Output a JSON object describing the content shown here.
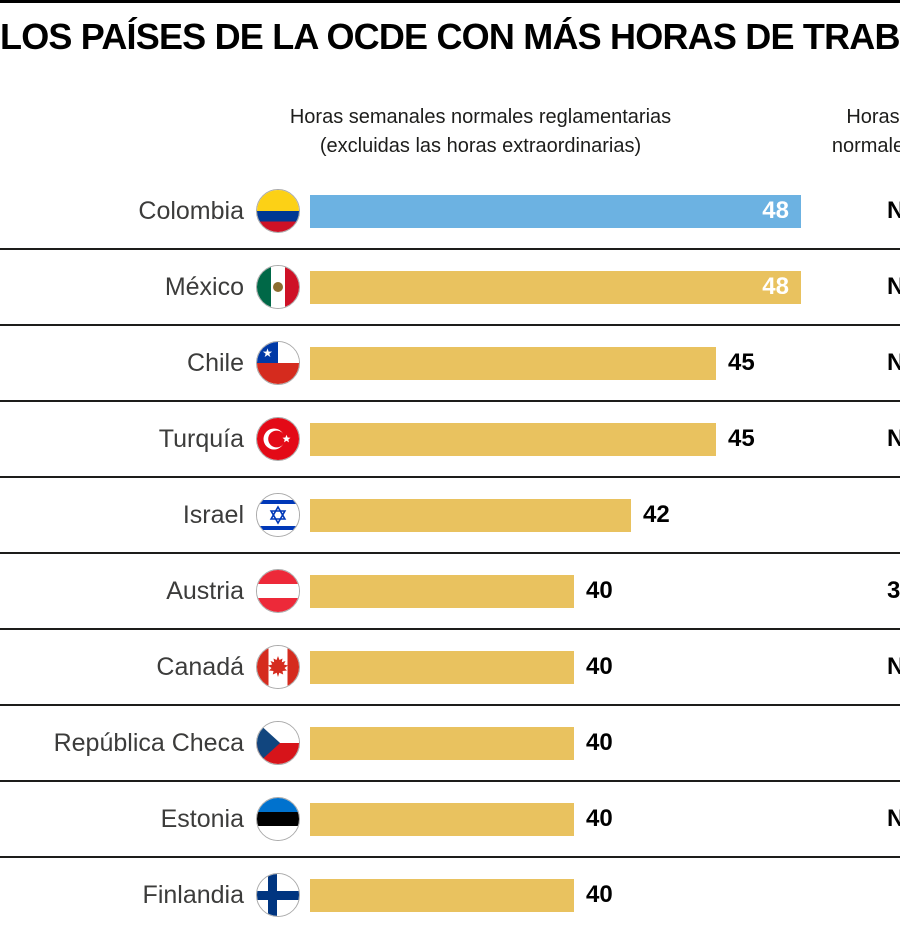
{
  "title": "LOS PAÍSES DE LA OCDE CON MÁS HORAS DE TRABAJO",
  "headers": {
    "bars_line1": "Horas semanales normales reglamentarias",
    "bars_line2": "(excluidas las horas extraordinarias)",
    "right_line1": "Horas",
    "right_line2": "normales"
  },
  "chart_data": {
    "type": "bar",
    "orientation": "horizontal",
    "title": "LOS PAÍSES DE LA OCDE CON MÁS HORAS DE TRABAJO",
    "value_label": "Horas semanales normales reglamentarias (excluidas las horas extraordinarias)",
    "categories": [
      "Colombia",
      "México",
      "Chile",
      "Turquía",
      "Israel",
      "Austria",
      "Canadá",
      "República Checa",
      "Estonia",
      "Finlandia"
    ],
    "values": [
      48,
      48,
      45,
      45,
      42,
      40,
      40,
      40,
      40,
      40
    ],
    "highlight_index": 0,
    "bar_colors": {
      "highlight": "#6cb2e2",
      "default_gold": "#e9c25f"
    },
    "right_column_visible_values": [
      "N",
      "N",
      "N",
      "N",
      "",
      "3",
      "N",
      "",
      "N",
      ""
    ],
    "flags": [
      "colombia",
      "mexico",
      "chile",
      "turquia",
      "israel",
      "austria",
      "canada",
      "republica-checa",
      "estonia",
      "finlandia"
    ],
    "layout": {
      "value_labels_inside_for": [
        48
      ],
      "grid": "row-separators",
      "legend": "none"
    }
  }
}
